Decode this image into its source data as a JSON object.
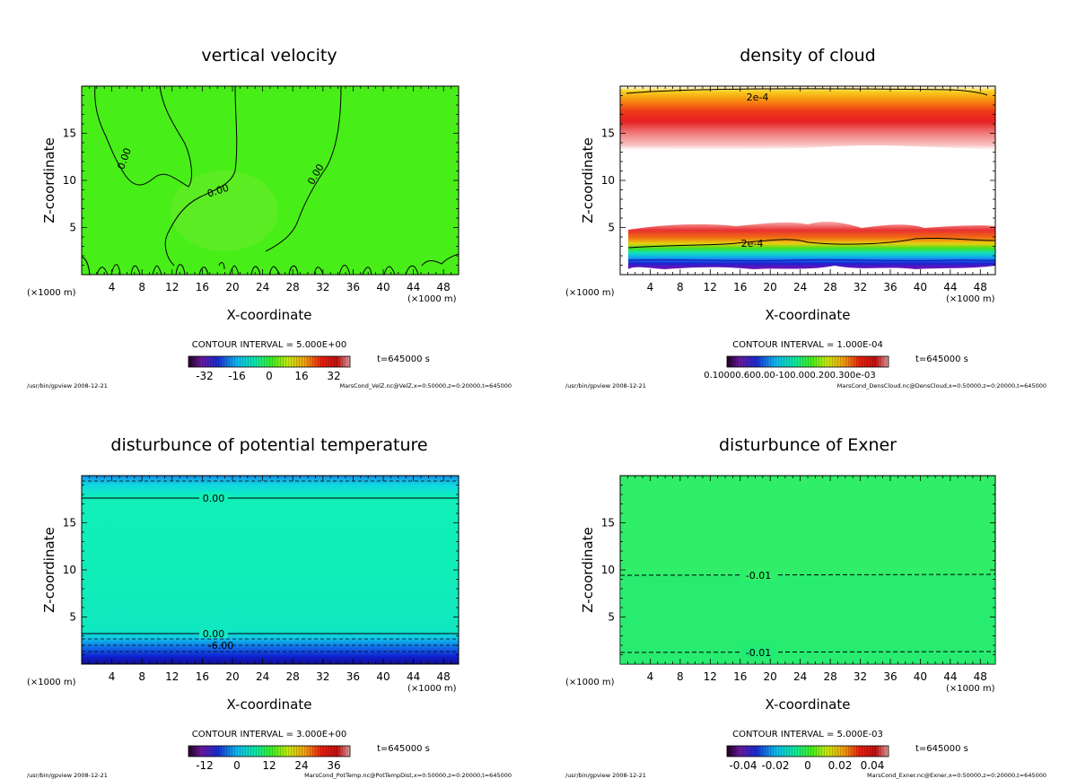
{
  "chart_data": [
    {
      "type": "heatmap",
      "title": "vertical velocity",
      "xlabel": "X-coordinate",
      "ylabel": "Z-coordinate",
      "x_unit": "(×1000 m)",
      "xlim": [
        0,
        50
      ],
      "ylim": [
        0,
        20
      ],
      "x_ticks": [
        4,
        8,
        12,
        16,
        20,
        24,
        28,
        32,
        36,
        40,
        44,
        48
      ],
      "y_ticks": [
        5,
        10,
        15
      ],
      "contour_interval": "CONTOUR INTERVAL = 5.000E+00",
      "time": "t=645000 s",
      "colorbar_ticks": [
        "-32",
        "-16",
        "0",
        "16",
        "32"
      ],
      "colorbar_range": [
        -40,
        40
      ],
      "contour_labels": [
        "0.00",
        "0.00",
        "0.00"
      ],
      "footer_left": "/usr/bin/gpview  2008-12-21",
      "footer_right": "MarsCond_VelZ.nc@VelZ,x=0:50000,z=0:20000,t=645000"
    },
    {
      "type": "heatmap",
      "title": "density of cloud",
      "xlabel": "X-coordinate",
      "ylabel": "Z-coordinate",
      "x_unit": "(×1000 m)",
      "xlim": [
        0,
        50
      ],
      "ylim": [
        0,
        20
      ],
      "x_ticks": [
        4,
        8,
        12,
        16,
        20,
        24,
        28,
        32,
        36,
        40,
        44,
        48
      ],
      "y_ticks": [
        5,
        10,
        15
      ],
      "contour_interval": "CONTOUR INTERVAL = 1.000E-04",
      "time": "t=645000 s",
      "colorbar_label": "0.10000.600.00-100.000.200.300e-03",
      "contour_labels": [
        "2e-4",
        "2e-4"
      ],
      "footer_left": "/usr/bin/gpview  2008-12-21",
      "footer_right": "MarsCond_DensCloud.nc@DensCloud,x=0:50000,z=0:20000,t=645000"
    },
    {
      "type": "heatmap",
      "title": "disturbunce of potential temperature",
      "xlabel": "X-coordinate",
      "ylabel": "Z-coordinate",
      "x_unit": "(×1000 m)",
      "xlim": [
        0,
        50
      ],
      "ylim": [
        0,
        20
      ],
      "x_ticks": [
        4,
        8,
        12,
        16,
        20,
        24,
        28,
        32,
        36,
        40,
        44,
        48
      ],
      "y_ticks": [
        5,
        10,
        15
      ],
      "contour_interval": "CONTOUR INTERVAL = 3.000E+00",
      "time": "t=645000 s",
      "colorbar_ticks": [
        "-12",
        "0",
        "12",
        "24",
        "36"
      ],
      "colorbar_range": [
        -18,
        42
      ],
      "contour_labels": [
        "0.00",
        "0.00",
        "-6.00"
      ],
      "footer_left": "/usr/bin/gpview  2008-12-21",
      "footer_right": "MarsCond_PotTemp.nc@PotTempDist,x=0:50000,z=0:20000,t=645000"
    },
    {
      "type": "heatmap",
      "title": "disturbunce of Exner",
      "xlabel": "X-coordinate",
      "ylabel": "Z-coordinate",
      "x_unit": "(×1000 m)",
      "xlim": [
        0,
        50
      ],
      "ylim": [
        0,
        20
      ],
      "x_ticks": [
        4,
        8,
        12,
        16,
        20,
        24,
        28,
        32,
        36,
        40,
        44,
        48
      ],
      "y_ticks": [
        5,
        10,
        15
      ],
      "contour_interval": "CONTOUR INTERVAL = 5.000E-03",
      "time": "t=645000 s",
      "colorbar_ticks": [
        "-0.04",
        "-0.02",
        "0",
        "0.02",
        "0.04"
      ],
      "colorbar_range": [
        -0.05,
        0.05
      ],
      "contour_labels": [
        "-0.01",
        "-0.01"
      ],
      "footer_left": "/usr/bin/gpview  2008-12-21",
      "footer_right": "MarsCond_Exner.nc@Exner,x=0:50000,z=0:20000,t=645000"
    }
  ]
}
